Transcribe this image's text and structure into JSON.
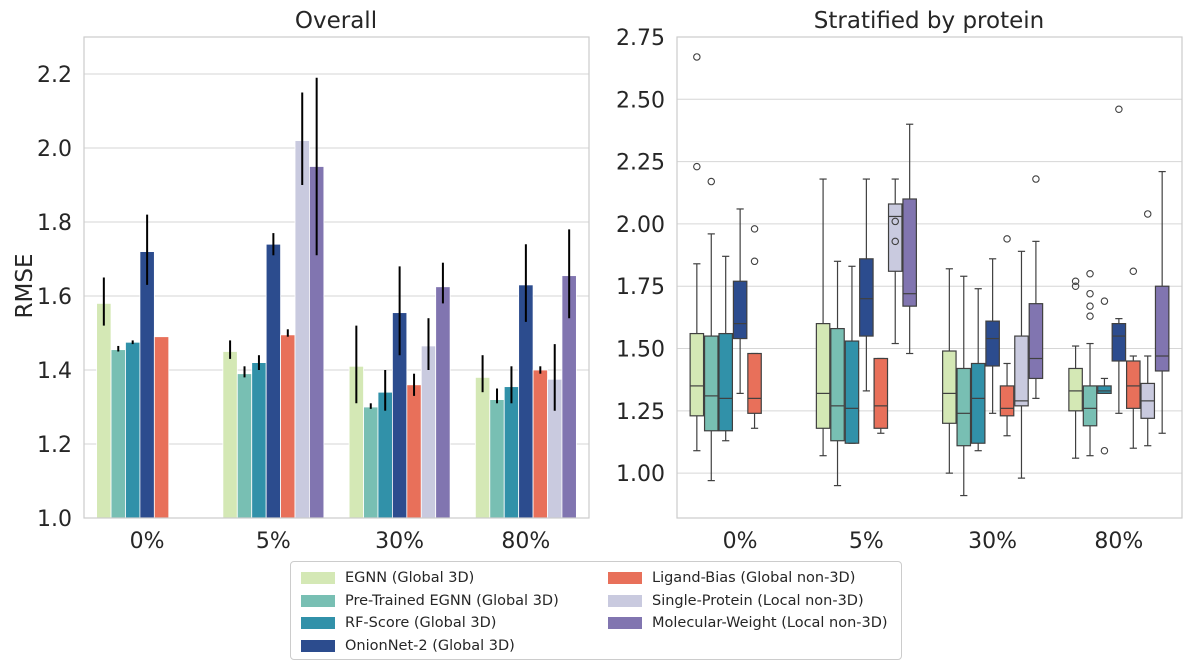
{
  "chart_data": [
    {
      "type": "bar",
      "title": "Overall",
      "ylabel": "RMSE",
      "xlabel": "",
      "ylim": [
        1.0,
        2.3
      ],
      "yticks": [
        "1.0",
        "1.2",
        "1.4",
        "1.6",
        "1.8",
        "2.0",
        "2.2"
      ],
      "categories": [
        "0%",
        "5%",
        "30%",
        "80%"
      ],
      "grid": "y",
      "series": [
        {
          "name": "EGNN (Global 3D)",
          "values": [
            1.58,
            1.45,
            1.41,
            1.38
          ],
          "err_low": [
            1.52,
            1.43,
            1.31,
            1.34
          ],
          "err_high": [
            1.65,
            1.48,
            1.52,
            1.44
          ]
        },
        {
          "name": "Pre-Trained EGNN (Global 3D)",
          "values": [
            1.455,
            1.39,
            1.3,
            1.32
          ],
          "err_low": [
            1.45,
            1.38,
            1.295,
            1.31
          ],
          "err_high": [
            1.465,
            1.41,
            1.31,
            1.35
          ]
        },
        {
          "name": "RF-Score (Global 3D)",
          "values": [
            1.475,
            1.42,
            1.34,
            1.355
          ],
          "err_low": [
            1.47,
            1.4,
            1.29,
            1.31
          ],
          "err_high": [
            1.48,
            1.44,
            1.4,
            1.41
          ]
        },
        {
          "name": "OnionNet-2 (Global 3D)",
          "values": [
            1.72,
            1.74,
            1.555,
            1.63
          ],
          "err_low": [
            1.63,
            1.71,
            1.44,
            1.53
          ],
          "err_high": [
            1.82,
            1.77,
            1.68,
            1.74
          ]
        },
        {
          "name": "Ligand-Bias (Global non-3D)",
          "values": [
            1.49,
            1.495,
            1.36,
            1.4
          ],
          "err_low": [
            1.49,
            1.49,
            1.33,
            1.39
          ],
          "err_high": [
            1.49,
            1.51,
            1.39,
            1.41
          ]
        },
        {
          "name": "Single-Protein (Local non-3D)",
          "values": [
            null,
            2.02,
            1.465,
            1.375
          ],
          "err_low": [
            null,
            1.9,
            1.4,
            1.29
          ],
          "err_high": [
            null,
            2.15,
            1.54,
            1.47
          ]
        },
        {
          "name": "Molecular-Weight (Local non-3D)",
          "values": [
            null,
            1.95,
            1.625,
            1.655
          ],
          "err_low": [
            null,
            1.71,
            1.58,
            1.54
          ],
          "err_high": [
            null,
            2.19,
            1.69,
            1.78
          ]
        }
      ]
    },
    {
      "type": "box",
      "title": "Stratified by protein",
      "ylabel": "",
      "xlabel": "",
      "ylim": [
        0.82,
        2.75
      ],
      "yticks": [
        "1.00",
        "1.25",
        "1.50",
        "1.75",
        "2.00",
        "2.25",
        "2.50",
        "2.75"
      ],
      "categories": [
        "0%",
        "5%",
        "30%",
        "80%"
      ],
      "grid": "y",
      "series": [
        {
          "name": "EGNN (Global 3D)",
          "boxes": [
            {
              "min": 1.09,
              "q1": 1.23,
              "median": 1.35,
              "q3": 1.56,
              "max": 1.84,
              "outliers": [
                2.23,
                2.67
              ]
            },
            {
              "min": 1.07,
              "q1": 1.18,
              "median": 1.32,
              "q3": 1.6,
              "max": 2.18,
              "outliers": []
            },
            {
              "min": 1.0,
              "q1": 1.2,
              "median": 1.32,
              "q3": 1.49,
              "max": 1.82,
              "outliers": []
            },
            {
              "min": 1.06,
              "q1": 1.25,
              "median": 1.33,
              "q3": 1.42,
              "max": 1.51,
              "outliers": [
                1.75,
                1.77
              ]
            }
          ]
        },
        {
          "name": "Pre-Trained EGNN (Global 3D)",
          "boxes": [
            {
              "min": 0.97,
              "q1": 1.17,
              "median": 1.31,
              "q3": 1.55,
              "max": 1.96,
              "outliers": [
                2.17
              ]
            },
            {
              "min": 0.95,
              "q1": 1.13,
              "median": 1.27,
              "q3": 1.58,
              "max": 1.85,
              "outliers": []
            },
            {
              "min": 0.91,
              "q1": 1.11,
              "median": 1.24,
              "q3": 1.42,
              "max": 1.79,
              "outliers": []
            },
            {
              "min": 1.07,
              "q1": 1.19,
              "median": 1.26,
              "q3": 1.35,
              "max": 1.52,
              "outliers": [
                1.63,
                1.67,
                1.72,
                1.8
              ]
            }
          ]
        },
        {
          "name": "RF-Score (Global 3D)",
          "boxes": [
            {
              "min": 1.13,
              "q1": 1.17,
              "median": 1.3,
              "q3": 1.56,
              "max": 1.87,
              "outliers": []
            },
            {
              "min": 1.12,
              "q1": 1.12,
              "median": 1.26,
              "q3": 1.53,
              "max": 1.83,
              "outliers": []
            },
            {
              "min": 1.09,
              "q1": 1.12,
              "median": 1.3,
              "q3": 1.44,
              "max": 1.74,
              "outliers": []
            },
            {
              "min": 1.32,
              "q1": 1.32,
              "median": 1.33,
              "q3": 1.35,
              "max": 1.38,
              "outliers": [
                1.09,
                1.69
              ]
            }
          ]
        },
        {
          "name": "OnionNet-2 (Global 3D)",
          "boxes": [
            {
              "min": 1.32,
              "q1": 1.54,
              "median": 1.6,
              "q3": 1.77,
              "max": 2.06,
              "outliers": []
            },
            {
              "min": 1.33,
              "q1": 1.55,
              "median": 1.7,
              "q3": 1.86,
              "max": 2.18,
              "outliers": []
            },
            {
              "min": 1.24,
              "q1": 1.43,
              "median": 1.54,
              "q3": 1.61,
              "max": 1.86,
              "outliers": []
            },
            {
              "min": 1.24,
              "q1": 1.45,
              "median": 1.55,
              "q3": 1.6,
              "max": 1.62,
              "outliers": [
                2.46
              ]
            }
          ]
        },
        {
          "name": "Ligand-Bias (Global non-3D)",
          "boxes": [
            {
              "min": 1.18,
              "q1": 1.24,
              "median": 1.3,
              "q3": 1.48,
              "max": 1.48,
              "outliers": [
                1.85,
                1.98
              ]
            },
            {
              "min": 1.16,
              "q1": 1.18,
              "median": 1.27,
              "q3": 1.46,
              "max": 1.46,
              "outliers": []
            },
            {
              "min": 1.15,
              "q1": 1.23,
              "median": 1.26,
              "q3": 1.35,
              "max": 1.44,
              "outliers": [
                1.94
              ]
            },
            {
              "min": 1.1,
              "q1": 1.26,
              "median": 1.35,
              "q3": 1.45,
              "max": 1.47,
              "outliers": [
                1.81
              ]
            }
          ]
        },
        {
          "name": "Single-Protein (Local non-3D)",
          "boxes": [
            {
              "min": null,
              "q1": null,
              "median": null,
              "q3": null,
              "max": null,
              "outliers": []
            },
            {
              "min": 1.52,
              "q1": 1.81,
              "median": 2.03,
              "q3": 2.08,
              "max": 2.18,
              "outliers": [
                1.93,
                2.01
              ]
            },
            {
              "min": 0.98,
              "q1": 1.27,
              "median": 1.29,
              "q3": 1.55,
              "max": 1.89,
              "outliers": []
            },
            {
              "min": 1.11,
              "q1": 1.22,
              "median": 1.29,
              "q3": 1.36,
              "max": 1.47,
              "outliers": [
                2.04
              ]
            }
          ]
        },
        {
          "name": "Molecular-Weight (Local non-3D)",
          "boxes": [
            {
              "min": null,
              "q1": null,
              "median": null,
              "q3": null,
              "max": null,
              "outliers": []
            },
            {
              "min": 1.48,
              "q1": 1.67,
              "median": 1.72,
              "q3": 2.1,
              "max": 2.4,
              "outliers": []
            },
            {
              "min": 1.3,
              "q1": 1.38,
              "median": 1.46,
              "q3": 1.68,
              "max": 1.93,
              "outliers": [
                2.18
              ]
            },
            {
              "min": 1.16,
              "q1": 1.41,
              "median": 1.47,
              "q3": 1.75,
              "max": 2.21,
              "outliers": []
            }
          ]
        }
      ]
    }
  ],
  "colors": [
    "#d4e8b5",
    "#78bfb3",
    "#3191a9",
    "#2c4c8e",
    "#e8705a",
    "#c9cadf",
    "#8175b0"
  ],
  "legend": {
    "placement": "bottom-center",
    "items": [
      "EGNN (Global 3D)",
      "Pre-Trained EGNN (Global 3D)",
      "RF-Score (Global 3D)",
      "OnionNet-2 (Global 3D)",
      "Ligand-Bias (Global non-3D)",
      "Single-Protein (Local non-3D)",
      "Molecular-Weight (Local non-3D)"
    ]
  }
}
